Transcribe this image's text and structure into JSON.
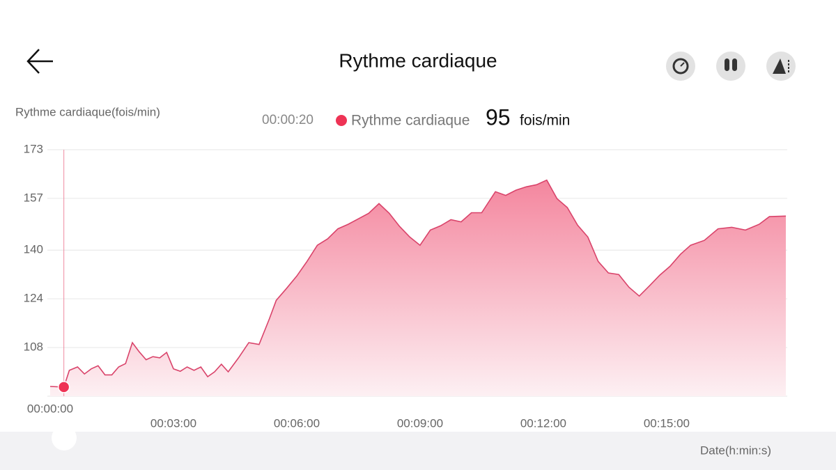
{
  "header": {
    "title": "Rythme cardiaque"
  },
  "chart_data": {
    "type": "area",
    "ylabel": "Rythme cardiaque(fois/min)",
    "xlabel": "Date(h:min:s)",
    "x": [
      0,
      20,
      28,
      40,
      50,
      60,
      70,
      80,
      90,
      100,
      110,
      120,
      130,
      140,
      150,
      160,
      170,
      180,
      190,
      200,
      210,
      220,
      230,
      240,
      250,
      260,
      275,
      290,
      305,
      320,
      330,
      345,
      360,
      375,
      390,
      405,
      420,
      435,
      450,
      465,
      480,
      495,
      510,
      525,
      540,
      555,
      570,
      585,
      600,
      615,
      630,
      650,
      665,
      680,
      695,
      710,
      725,
      740,
      755,
      770,
      785,
      800,
      815,
      830,
      845,
      860,
      875,
      890,
      905,
      920,
      935,
      955,
      975,
      995,
      1015,
      1035,
      1050,
      1074
    ],
    "series": [
      {
        "name": "Rythme cardiaque",
        "color": "#d9436a",
        "values": [
          95.2,
          95,
          100.5,
          101.6,
          99.3,
          101,
          102,
          99,
          99,
          101.6,
          102.7,
          109.6,
          106.6,
          104,
          105,
          104.6,
          106.4,
          101,
          100.2,
          101.6,
          100.5,
          101.6,
          98.4,
          100,
          102.5,
          100,
          104.6,
          109.6,
          109,
          117.4,
          123.5,
          127.4,
          131.5,
          136.3,
          141.6,
          143.7,
          147,
          148.5,
          150.3,
          152.1,
          155.3,
          152.1,
          147.8,
          144.3,
          141.6,
          146.6,
          148,
          150,
          149.3,
          152.3,
          152.3,
          159.2,
          158,
          159.7,
          160.8,
          161.5,
          163,
          156.9,
          154,
          148.2,
          144.3,
          136.3,
          132.5,
          132,
          127.8,
          124.9,
          128.3,
          131.8,
          134.7,
          138.6,
          141.6,
          143.2,
          147,
          147.5,
          146.6,
          148.5,
          151,
          151.2
        ]
      }
    ],
    "cursor": {
      "x": {
        "value": 20,
        "label": "00:00:20"
      },
      "value": 95,
      "unit": "fois/min",
      "color": "#ee3355"
    },
    "xlim": [
      0,
      1074
    ],
    "xticks": [
      {
        "value": 0,
        "label": "00:00:00"
      },
      {
        "value": 180,
        "label": "00:03:00"
      },
      {
        "value": 360,
        "label": "00:06:00"
      },
      {
        "value": 540,
        "label": "00:09:00"
      },
      {
        "value": 720,
        "label": "00:12:00"
      },
      {
        "value": 900,
        "label": "00:15:00"
      }
    ],
    "ylim": [
      92,
      173
    ],
    "yticks": [
      108,
      124,
      140,
      157,
      173
    ],
    "grid": true
  }
}
